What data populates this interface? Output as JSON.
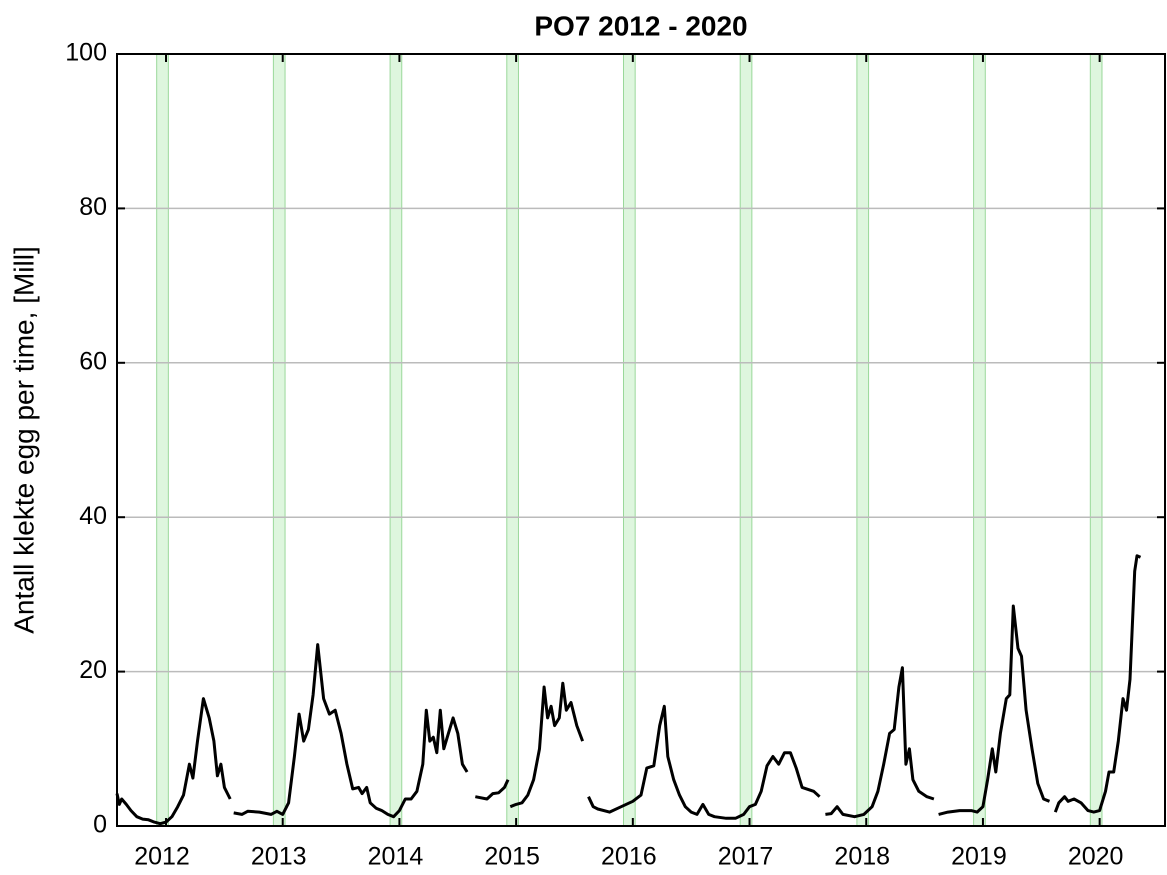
{
  "chart_data": {
    "type": "line",
    "title": "PO7 2012 - 2020",
    "y_label": "Antall klekte egg per time, [Mill]",
    "xlim": [
      2011.58,
      2020.56
    ],
    "xticks": [
      2012,
      2013,
      2014,
      2015,
      2016,
      2017,
      2018,
      2019,
      2020
    ],
    "ylim": [
      0,
      100
    ],
    "yticks": [
      0,
      20,
      40,
      60,
      80,
      100
    ],
    "grid": true,
    "color": "#000000",
    "band_color": "#c8f0c8",
    "shaded_periods": [
      [
        2011.92,
        2012.02
      ],
      [
        2012.92,
        2013.02
      ],
      [
        2013.92,
        2014.02
      ],
      [
        2014.92,
        2015.02
      ],
      [
        2015.92,
        2016.02
      ],
      [
        2016.92,
        2017.02
      ],
      [
        2017.92,
        2018.02
      ],
      [
        2018.92,
        2019.02
      ],
      [
        2019.92,
        2020.02
      ]
    ],
    "x": [
      2011.58,
      2011.6,
      2011.62,
      2011.66,
      2011.7,
      2011.75,
      2011.8,
      2011.85,
      2011.9,
      2011.95,
      2012.0,
      2012.05,
      2012.1,
      2012.15,
      2012.2,
      2012.23,
      2012.27,
      2012.32,
      2012.37,
      2012.41,
      2012.44,
      2012.47,
      2012.5,
      2012.55,
      2012.57,
      2012.58,
      2012.65,
      2012.7,
      2012.8,
      2012.9,
      2012.95,
      2013.0,
      2013.05,
      2013.1,
      2013.14,
      2013.18,
      2013.22,
      2013.26,
      2013.3,
      2013.35,
      2013.4,
      2013.45,
      2013.5,
      2013.55,
      2013.6,
      2013.65,
      2013.68,
      2013.72,
      2013.75,
      2013.8,
      2013.85,
      2013.9,
      2013.95,
      2014.0,
      2014.05,
      2014.1,
      2014.15,
      2014.2,
      2014.23,
      2014.26,
      2014.29,
      2014.32,
      2014.35,
      2014.38,
      2014.42,
      2014.46,
      2014.5,
      2014.54,
      2014.58,
      2014.6,
      2014.65,
      2014.75,
      2014.8,
      2014.85,
      2014.9,
      2014.93,
      2014.94,
      2014.95,
      2015.0,
      2015.05,
      2015.1,
      2015.15,
      2015.2,
      2015.24,
      2015.27,
      2015.3,
      2015.33,
      2015.37,
      2015.4,
      2015.43,
      2015.47,
      2015.52,
      2015.57,
      2015.6,
      2015.62,
      2015.66,
      2015.7,
      2015.8,
      2015.9,
      2016.0,
      2016.07,
      2016.12,
      2016.18,
      2016.23,
      2016.27,
      2016.3,
      2016.35,
      2016.4,
      2016.45,
      2016.5,
      2016.55,
      2016.6,
      2016.65,
      2016.7,
      2016.8,
      2016.88,
      2016.95,
      2017.0,
      2017.05,
      2017.1,
      2017.15,
      2017.2,
      2017.25,
      2017.3,
      2017.35,
      2017.4,
      2017.45,
      2017.55,
      2017.6,
      2017.63,
      2017.65,
      2017.7,
      2017.75,
      2017.8,
      2017.9,
      2017.98,
      2018.05,
      2018.1,
      2018.15,
      2018.2,
      2018.24,
      2018.28,
      2018.31,
      2018.34,
      2018.37,
      2018.4,
      2018.45,
      2018.52,
      2018.58,
      2018.6,
      2018.62,
      2018.7,
      2018.8,
      2018.9,
      2018.95,
      2019.0,
      2019.04,
      2019.08,
      2019.11,
      2019.15,
      2019.2,
      2019.23,
      2019.26,
      2019.3,
      2019.33,
      2019.37,
      2019.42,
      2019.47,
      2019.52,
      2019.57,
      2019.6,
      2019.62,
      2019.65,
      2019.7,
      2019.73,
      2019.78,
      2019.84,
      2019.9,
      2019.95,
      2020.0,
      2020.05,
      2020.08,
      2020.12,
      2020.16,
      2020.2,
      2020.23,
      2020.26,
      2020.3,
      2020.32,
      2020.35
    ],
    "values": [
      4.2,
      2.8,
      3.5,
      2.8,
      2.0,
      1.2,
      0.9,
      0.8,
      0.5,
      0.3,
      0.5,
      1.2,
      2.5,
      4,
      8,
      6.2,
      11,
      16.5,
      14,
      11,
      6.5,
      8,
      5,
      3.5,
      null,
      1.7,
      1.5,
      1.9,
      1.8,
      1.5,
      1.9,
      1.5,
      3,
      9,
      14.5,
      11,
      12.5,
      17,
      23.5,
      16.5,
      14.5,
      15,
      12,
      8,
      4.8,
      5,
      4.2,
      5,
      3,
      2.3,
      2,
      1.5,
      1.2,
      2,
      3.5,
      3.5,
      4.5,
      8,
      15,
      11,
      11.5,
      9.5,
      15,
      10,
      12,
      14,
      12,
      8,
      7,
      null,
      3.8,
      3.5,
      4.2,
      4.3,
      5,
      6,
      null,
      2.5,
      2.8,
      3,
      4,
      6,
      10,
      18,
      14,
      15.5,
      13,
      14,
      18.5,
      15,
      16,
      13,
      11,
      null,
      3.8,
      2.5,
      2.2,
      1.8,
      2.5,
      3.2,
      4,
      7.5,
      7.8,
      13,
      15.5,
      9,
      6,
      4,
      2.5,
      1.8,
      1.5,
      2.8,
      1.5,
      1.2,
      1.0,
      1.0,
      1.5,
      2.5,
      2.8,
      4.5,
      7.8,
      9,
      8,
      9.5,
      9.5,
      7.5,
      5,
      4.5,
      3.8,
      null,
      1.5,
      1.6,
      2.5,
      1.5,
      1.2,
      1.5,
      2.5,
      4.5,
      8,
      12,
      12.5,
      18,
      20.5,
      8,
      10,
      6,
      4.5,
      3.8,
      3.5,
      null,
      1.5,
      1.8,
      2,
      2,
      1.8,
      2.5,
      6,
      10,
      7,
      12,
      16.5,
      17,
      28.5,
      23,
      22,
      15,
      10,
      5.5,
      3.5,
      3.2,
      null,
      1.8,
      3,
      3.8,
      3.2,
      3.5,
      3,
      2,
      1.8,
      2,
      4.5,
      7,
      7,
      11,
      16.5,
      15,
      19,
      33,
      35,
      34.8
    ]
  }
}
